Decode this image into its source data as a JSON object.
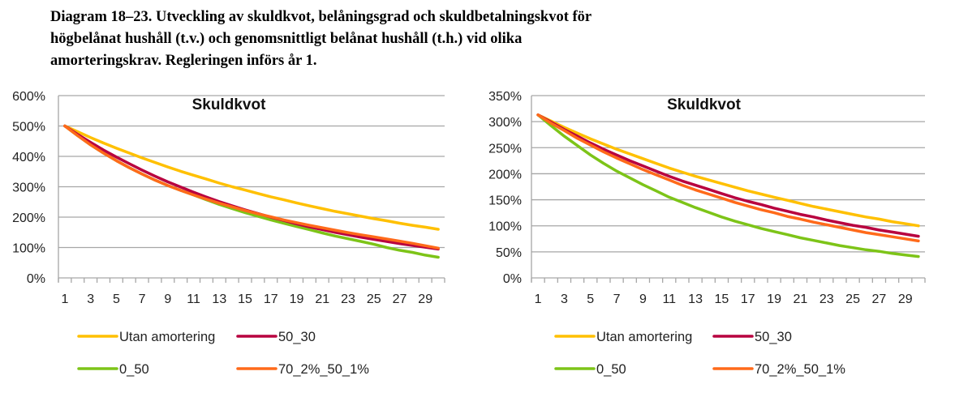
{
  "title_lines": [
    "Diagram 18–23. Utveckling av skuldkvot, belåningsgrad och skuldbetalningskvot för",
    "högbelånat hushåll (t.v.) och genomsnittligt belånat hushåll (t.h.) vid olika",
    "amorteringskrav. Regleringen införs år 1."
  ],
  "colors": {
    "Utan amortering": "#FFC000",
    "50_30": "#B8003F",
    "0_50": "#7DC418",
    "70_2%_50_1%": "#FF6A1A",
    "grid": "#A6A6A6"
  },
  "chart_data": [
    {
      "type": "line",
      "title": "Skuldkvot",
      "xlabel": "",
      "ylabel": "",
      "x": [
        1,
        2,
        3,
        4,
        5,
        6,
        7,
        8,
        9,
        10,
        11,
        12,
        13,
        14,
        15,
        16,
        17,
        18,
        19,
        20,
        21,
        22,
        23,
        24,
        25,
        26,
        27,
        28,
        29,
        30
      ],
      "xticks": [
        "1",
        "3",
        "5",
        "7",
        "9",
        "11",
        "13",
        "15",
        "17",
        "19",
        "21",
        "23",
        "25",
        "27",
        "29"
      ],
      "ylim": [
        0,
        600
      ],
      "yticks": [
        "0%",
        "100%",
        "200%",
        "300%",
        "400%",
        "500%",
        "600%"
      ],
      "ystep": 100,
      "grid": true,
      "legend": "bottom",
      "series": [
        {
          "name": "Utan amortering",
          "values": [
            500,
            481,
            462,
            444,
            427,
            411,
            395,
            380,
            365,
            351,
            338,
            325,
            312,
            300,
            289,
            278,
            267,
            257,
            247,
            237,
            228,
            219,
            211,
            203,
            195,
            188,
            180,
            173,
            167,
            160
          ]
        },
        {
          "name": "50_30",
          "values": [
            500,
            472,
            446,
            421,
            398,
            376,
            355,
            335,
            316,
            299,
            282,
            266,
            251,
            237,
            224,
            212,
            200,
            189,
            178,
            168,
            159,
            150,
            142,
            134,
            127,
            120,
            113,
            107,
            101,
            95
          ]
        },
        {
          "name": "0_50",
          "values": [
            500,
            468,
            438,
            411,
            386,
            363,
            342,
            322,
            304,
            288,
            273,
            257,
            242,
            228,
            215,
            203,
            191,
            180,
            169,
            159,
            148,
            138,
            129,
            120,
            111,
            100,
            91,
            84,
            75,
            68
          ]
        },
        {
          "name": "70_2%_50_1%",
          "values": [
            500,
            468,
            438,
            411,
            386,
            363,
            342,
            322,
            304,
            288,
            273,
            259,
            246,
            234,
            222,
            211,
            201,
            191,
            182,
            173,
            165,
            157,
            149,
            142,
            135,
            128,
            121,
            114,
            106,
            98
          ]
        }
      ]
    },
    {
      "type": "line",
      "title": "Skuldkvot",
      "xlabel": "",
      "ylabel": "",
      "x": [
        1,
        2,
        3,
        4,
        5,
        6,
        7,
        8,
        9,
        10,
        11,
        12,
        13,
        14,
        15,
        16,
        17,
        18,
        19,
        20,
        21,
        22,
        23,
        24,
        25,
        26,
        27,
        28,
        29,
        30
      ],
      "xticks": [
        "1",
        "3",
        "5",
        "7",
        "9",
        "11",
        "13",
        "15",
        "17",
        "19",
        "21",
        "23",
        "25",
        "27",
        "29"
      ],
      "ylim": [
        0,
        350
      ],
      "yticks": [
        "0%",
        "50%",
        "100%",
        "150%",
        "200%",
        "250%",
        "300%",
        "350%"
      ],
      "ystep": 50,
      "grid": true,
      "legend": "bottom",
      "series": [
        {
          "name": "Utan amortering",
          "values": [
            313,
            301,
            289,
            278,
            267,
            257,
            247,
            238,
            229,
            220,
            211,
            203,
            195,
            188,
            181,
            174,
            167,
            161,
            155,
            149,
            143,
            137,
            132,
            127,
            122,
            117,
            113,
            108,
            104,
            100
          ]
        },
        {
          "name": "50_30",
          "values": [
            313,
            299,
            285,
            272,
            259,
            247,
            236,
            225,
            215,
            205,
            195,
            186,
            178,
            170,
            162,
            154,
            147,
            141,
            134,
            128,
            122,
            117,
            111,
            106,
            101,
            97,
            92,
            88,
            84,
            80
          ]
        },
        {
          "name": "0_50",
          "values": [
            313,
            292,
            272,
            254,
            236,
            220,
            205,
            192,
            179,
            167,
            155,
            145,
            135,
            126,
            117,
            109,
            102,
            95,
            89,
            83,
            77,
            72,
            67,
            62,
            58,
            54,
            51,
            47,
            44,
            41
          ]
        },
        {
          "name": "70_2%_50_1%",
          "values": [
            313,
            297,
            283,
            268,
            255,
            242,
            230,
            219,
            208,
            198,
            188,
            178,
            169,
            161,
            153,
            145,
            138,
            131,
            125,
            118,
            113,
            107,
            102,
            97,
            92,
            87,
            83,
            79,
            75,
            71
          ]
        }
      ]
    }
  ]
}
